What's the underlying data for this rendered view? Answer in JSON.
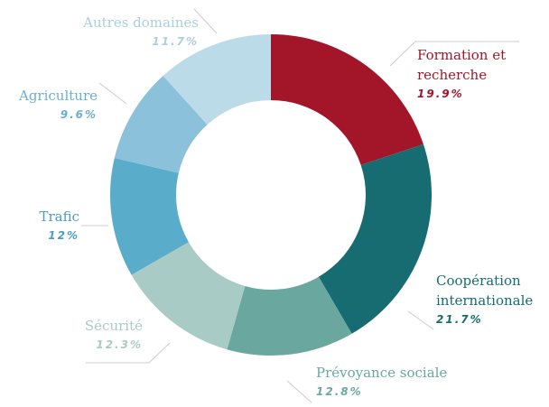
{
  "chart_data": {
    "type": "donut",
    "categories": [
      "Formation et recherche",
      "Coopération internationale",
      "Prévoyance sociale",
      "Sécurité",
      "Trafic",
      "Agriculture",
      "Autres domaines"
    ],
    "values": [
      19.9,
      21.7,
      12.8,
      12.3,
      12,
      9.6,
      11.7
    ],
    "value_labels": [
      "19.9%",
      "21.7%",
      "12.8%",
      "12.3%",
      "12%",
      "9.6%",
      "11.7%"
    ],
    "colors": [
      "#a3162a",
      "#176c72",
      "#6aa89f",
      "#a9cbc5",
      "#5aaccb",
      "#8bc1da",
      "#bcdbe8"
    ]
  }
}
